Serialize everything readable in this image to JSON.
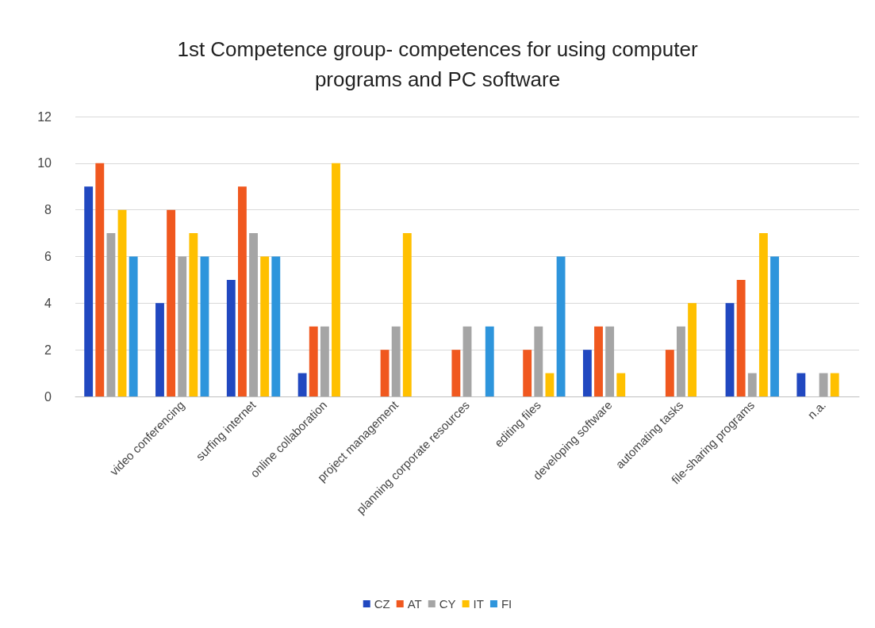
{
  "chart_data": {
    "type": "bar",
    "title": "1st Competence group- competences for using computer\nprograms and PC software",
    "categories": [
      null,
      "video conferencing",
      "surfing internet",
      "online collaboration",
      "project management",
      "planning corporate resources",
      "editing files",
      "developing software",
      "automating tasks",
      "file-sharing programs",
      "n.a."
    ],
    "series": [
      {
        "name": "CZ",
        "color": "#2148c0",
        "values": [
          9,
          4,
          5,
          1,
          0,
          0,
          0,
          2,
          0,
          4,
          1
        ]
      },
      {
        "name": "AT",
        "color": "#f0581f",
        "values": [
          10,
          8,
          9,
          3,
          2,
          2,
          2,
          3,
          2,
          5,
          0
        ]
      },
      {
        "name": "CY",
        "color": "#a5a5a5",
        "values": [
          7,
          6,
          7,
          3,
          3,
          3,
          3,
          3,
          3,
          1,
          1
        ]
      },
      {
        "name": "IT",
        "color": "#ffc000",
        "values": [
          8,
          7,
          6,
          10,
          7,
          0,
          1,
          1,
          4,
          7,
          1
        ]
      },
      {
        "name": "FI",
        "color": "#2e95dc",
        "values": [
          6,
          6,
          6,
          0,
          0,
          3,
          6,
          0,
          0,
          6,
          0
        ]
      }
    ],
    "ylim": [
      0,
      12
    ],
    "yticks": [
      0,
      2,
      4,
      6,
      8,
      10,
      12
    ],
    "grid": "y",
    "legend": "bottom"
  }
}
